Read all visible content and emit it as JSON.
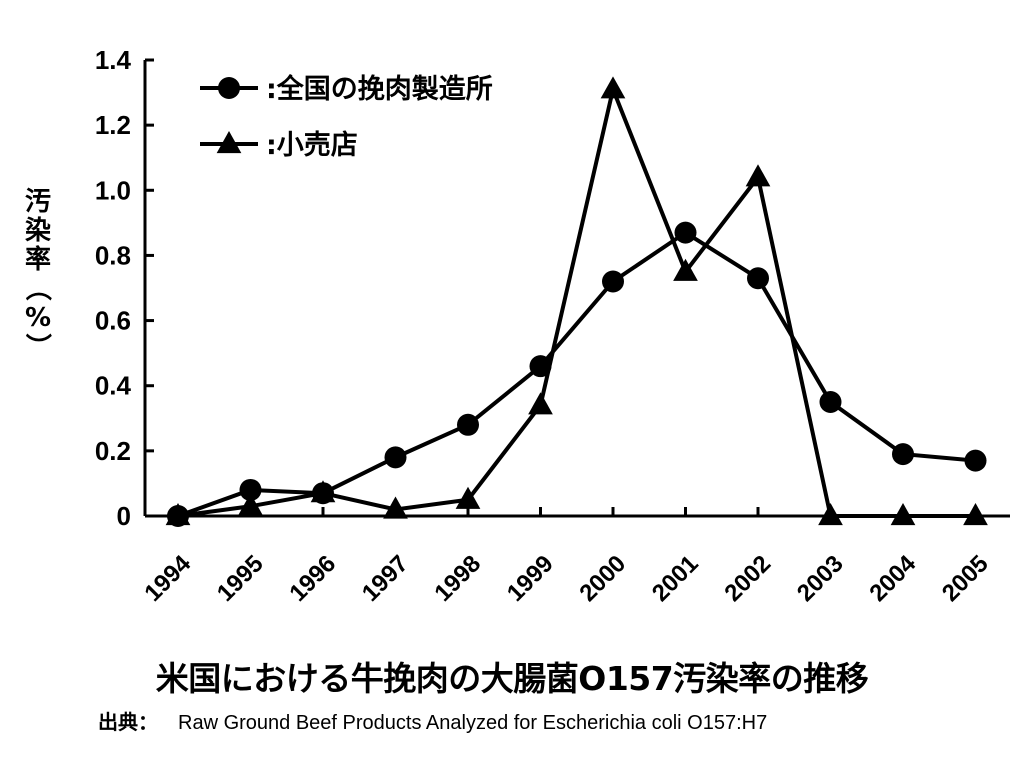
{
  "chart_data": {
    "type": "line",
    "title": "米国における牛挽肉の大腸菌O157汚染率の推移",
    "xlabel": "",
    "ylabel": "汚染率（%）",
    "categories": [
      "1994",
      "1995",
      "1996",
      "1997",
      "1998",
      "1999",
      "2000",
      "2001",
      "2002",
      "2003",
      "2004",
      "2005"
    ],
    "series": [
      {
        "name": "全国の挽肉製造所",
        "marker": "circle",
        "values": [
          0,
          0.08,
          0.07,
          0.18,
          0.28,
          0.46,
          0.72,
          0.87,
          0.73,
          0.35,
          0.19,
          0.17
        ]
      },
      {
        "name": "小売店",
        "marker": "triangle",
        "values": [
          0,
          0.03,
          0.07,
          0.02,
          0.05,
          0.34,
          1.31,
          0.75,
          1.04,
          0,
          0,
          0
        ]
      }
    ],
    "yticks": [
      "0",
      "0.2",
      "0.4",
      "0.6",
      "0.8",
      "1.0",
      "1.2",
      "1.4"
    ],
    "ylim": [
      0,
      1.4
    ],
    "grid": false,
    "legend": "top-left",
    "legend_prefix": ":",
    "colors": {
      "line": "#000000",
      "background": "#ffffff"
    }
  },
  "source": {
    "label": "出典：",
    "text": "Raw Ground Beef Products Analyzed for Escherichia coli O157:H7"
  }
}
